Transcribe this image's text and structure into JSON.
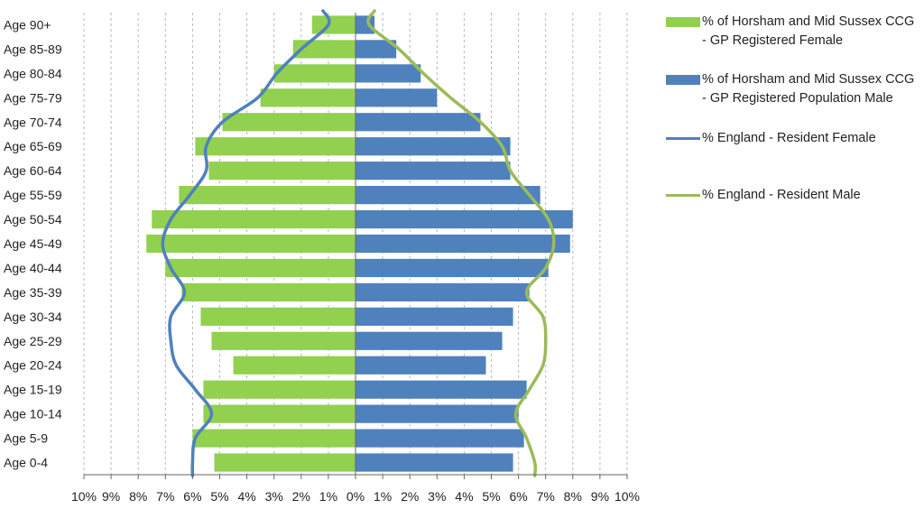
{
  "chart_data": {
    "type": "bar",
    "orientation": "horizontal",
    "layout": "population-pyramid",
    "categories": [
      "Age 0-4",
      "Age 5-9",
      "Age 10-14",
      "Age 15-19",
      "Age 20-24",
      "Age 25-29",
      "Age 30-34",
      "Age 35-39",
      "Age 40-44",
      "Age 45-49",
      "Age 50-54",
      "Age 55-59",
      "Age 60-64",
      "Age 65-69",
      "Age 70-74",
      "Age 75-79",
      "Age 80-84",
      "Age 85-89",
      "Age 90+"
    ],
    "series": [
      {
        "name": "% of Horsham and Mid Sussex CCG - GP Registered Female",
        "kind": "bar",
        "side": "left",
        "color": "#92d050",
        "values": [
          5.2,
          6.0,
          5.6,
          5.6,
          4.5,
          5.3,
          5.7,
          6.4,
          7.0,
          7.7,
          7.5,
          6.5,
          5.4,
          5.9,
          4.9,
          3.5,
          3.0,
          2.3,
          1.6
        ]
      },
      {
        "name": "% of Horsham and Mid Sussex CCG - GP Registered Population Male",
        "kind": "bar",
        "side": "right",
        "color": "#4f81bd",
        "values": [
          5.8,
          6.2,
          6.0,
          6.3,
          4.8,
          5.4,
          5.8,
          6.4,
          7.1,
          7.9,
          8.0,
          6.8,
          5.7,
          5.7,
          4.6,
          3.0,
          2.4,
          1.5,
          0.7
        ]
      },
      {
        "name": "% England - Resident Female",
        "kind": "line",
        "side": "left",
        "color": "#4f81bd",
        "values": [
          6.0,
          5.9,
          5.3,
          5.9,
          6.6,
          6.8,
          6.8,
          6.3,
          6.8,
          7.1,
          6.8,
          6.1,
          5.5,
          5.5,
          4.9,
          3.6,
          2.9,
          2.0,
          1.0
        ]
      },
      {
        "name": "% England - Resident Male",
        "kind": "line",
        "side": "right",
        "color": "#9bbb59",
        "values": [
          6.6,
          6.3,
          5.9,
          6.4,
          6.9,
          7.0,
          6.9,
          6.3,
          7.0,
          7.3,
          7.1,
          6.4,
          5.7,
          5.4,
          4.6,
          3.5,
          2.5,
          1.6,
          0.5
        ]
      }
    ],
    "x_ticks": [
      "10%",
      "9%",
      "8%",
      "7%",
      "6%",
      "5%",
      "4%",
      "3%",
      "2%",
      "1%",
      "0%",
      "1%",
      "2%",
      "3%",
      "4%",
      "5%",
      "6%",
      "7%",
      "8%",
      "9%",
      "10%"
    ],
    "xlim": [
      -10,
      10
    ],
    "grid": "vertical-dashed",
    "legend_position": "right",
    "title": "",
    "xlabel": "",
    "ylabel": ""
  }
}
